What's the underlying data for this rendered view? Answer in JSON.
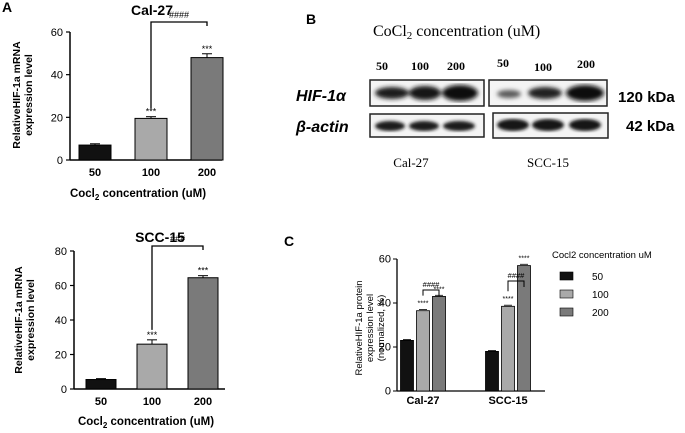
{
  "panels": {
    "A": "A",
    "B": "B",
    "C": "C"
  },
  "colors": {
    "c50": "#111111",
    "c100": "#a9a9a9",
    "c200": "#7a7a7a"
  },
  "chart_data": [
    {
      "id": "cal27",
      "type": "bar",
      "title": "Cal-27",
      "categories": [
        "50",
        "100",
        "200"
      ],
      "values": [
        7,
        19.5,
        48
      ],
      "errors": [
        0.6,
        0.8,
        1.8
      ],
      "ylim": [
        0,
        60
      ],
      "yticks": [
        "0",
        "20",
        "40",
        "60"
      ],
      "ylabel": [
        "RelativeHIF-1a mRNA",
        "expression level"
      ],
      "xlabel": "Cocl2 concentration (uM)",
      "xlabel_parts": {
        "pre": "Cocl",
        "sub": "2",
        "post": " concentration (uM)"
      },
      "significance": [
        "",
        "***",
        "***"
      ],
      "bracket_label": "####"
    },
    {
      "id": "scc15",
      "type": "bar",
      "title": "SCC-15",
      "categories": [
        "50",
        "100",
        "200"
      ],
      "values": [
        5.5,
        26,
        64.5
      ],
      "errors": [
        0.5,
        2.5,
        1.2
      ],
      "ylim": [
        0,
        80
      ],
      "yticks": [
        "0",
        "20",
        "40",
        "60",
        "80"
      ],
      "ylabel": [
        "RelativeHIF-1a mRNA",
        "expression level"
      ],
      "xlabel": "Cocl2 concentration (uM)",
      "xlabel_parts": {
        "pre": "Cocl",
        "sub": "2",
        "post": " concentration (uM)"
      },
      "significance": [
        "",
        "***",
        "***"
      ],
      "bracket_label": "###"
    },
    {
      "id": "protein",
      "type": "bar",
      "title": "",
      "categories": [
        "Cal-27",
        "SCC-15"
      ],
      "series": [
        {
          "name": "50",
          "values": [
            23,
            18
          ],
          "errors": [
            0.4,
            0.4
          ]
        },
        {
          "name": "100",
          "values": [
            36.5,
            38.5
          ],
          "errors": [
            0.5,
            0.5
          ]
        },
        {
          "name": "200",
          "values": [
            43,
            57
          ],
          "errors": [
            0.5,
            0.6
          ]
        }
      ],
      "ylim": [
        0,
        60
      ],
      "yticks": [
        "0",
        "20",
        "40",
        "60"
      ],
      "ylabel": [
        "RelativeHIF-1a protein",
        "expression level",
        "(normalized, %)"
      ],
      "legend_title": "Cocl2 concentration uM",
      "legend": "right",
      "significance": [
        "",
        "****",
        "****"
      ],
      "bracket_label": "####"
    }
  ],
  "blot": {
    "title_pre": "CoCl",
    "title_sub": "2",
    "title_post": " concentration (uM)",
    "lanes_left": [
      "50",
      "100",
      "200"
    ],
    "lanes_right": [
      "50",
      "100",
      "200"
    ],
    "rows": [
      {
        "label": "HIF-1α",
        "kda": "120 kDa"
      },
      {
        "label": "β-actin",
        "kda": "42 kDa"
      }
    ],
    "cells": [
      "Cal-27",
      "SCC-15"
    ]
  }
}
